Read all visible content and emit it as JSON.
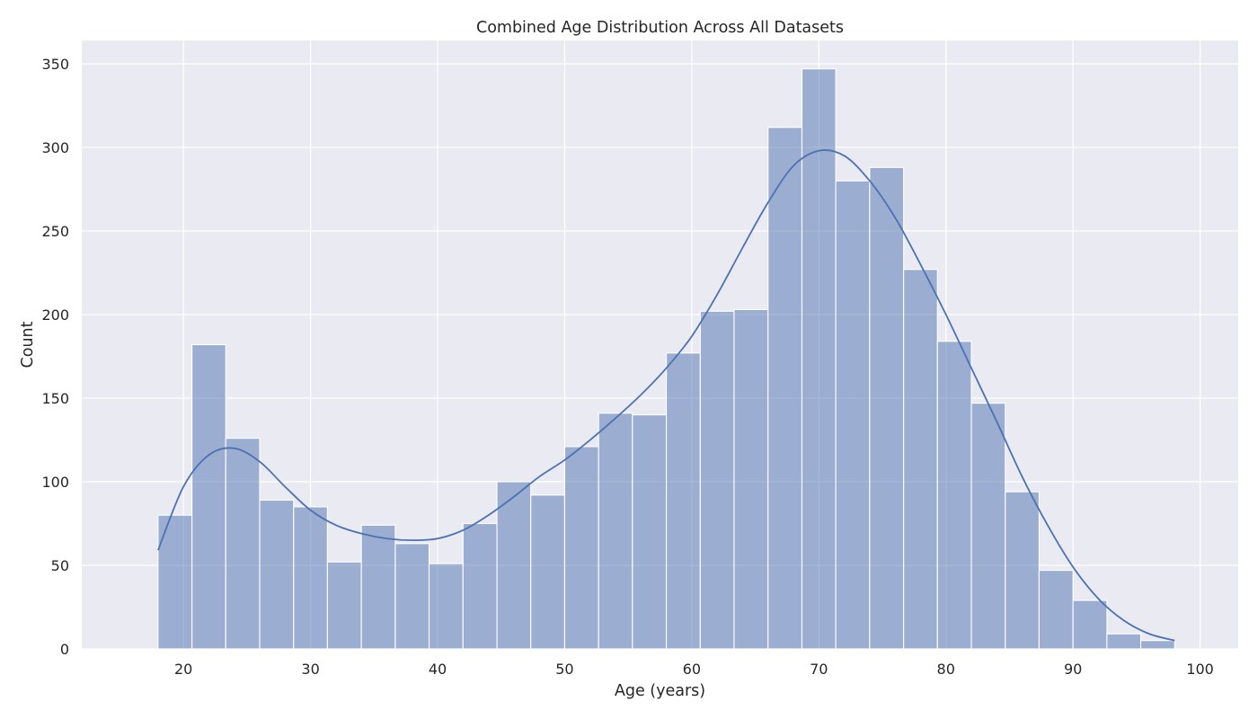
{
  "chart_data": {
    "type": "bar",
    "subtype": "histogram_with_kde",
    "title": "Combined Age Distribution Across All Datasets",
    "xlabel": "Age (years)",
    "ylabel": "Count",
    "xlim": [
      12,
      103
    ],
    "ylim": [
      0,
      364
    ],
    "xticks": [
      20,
      30,
      40,
      50,
      60,
      70,
      80,
      90,
      100
    ],
    "yticks": [
      0,
      50,
      100,
      150,
      200,
      250,
      300,
      350
    ],
    "grid": true,
    "legend": "none",
    "bin_start": 18,
    "bin_width": 2.6667,
    "bins": [
      {
        "x0": 18.0,
        "x1": 20.67,
        "count": 80
      },
      {
        "x0": 20.67,
        "x1": 23.33,
        "count": 182
      },
      {
        "x0": 23.33,
        "x1": 26.0,
        "count": 126
      },
      {
        "x0": 26.0,
        "x1": 28.67,
        "count": 89
      },
      {
        "x0": 28.67,
        "x1": 31.33,
        "count": 85
      },
      {
        "x0": 31.33,
        "x1": 34.0,
        "count": 52
      },
      {
        "x0": 34.0,
        "x1": 36.67,
        "count": 74
      },
      {
        "x0": 36.67,
        "x1": 39.33,
        "count": 63
      },
      {
        "x0": 39.33,
        "x1": 42.0,
        "count": 51
      },
      {
        "x0": 42.0,
        "x1": 44.67,
        "count": 75
      },
      {
        "x0": 44.67,
        "x1": 47.33,
        "count": 100
      },
      {
        "x0": 47.33,
        "x1": 50.0,
        "count": 92
      },
      {
        "x0": 50.0,
        "x1": 52.67,
        "count": 121
      },
      {
        "x0": 52.67,
        "x1": 55.33,
        "count": 141
      },
      {
        "x0": 55.33,
        "x1": 58.0,
        "count": 140
      },
      {
        "x0": 58.0,
        "x1": 60.67,
        "count": 177
      },
      {
        "x0": 60.67,
        "x1": 63.33,
        "count": 202
      },
      {
        "x0": 63.33,
        "x1": 66.0,
        "count": 203
      },
      {
        "x0": 66.0,
        "x1": 68.67,
        "count": 312
      },
      {
        "x0": 68.67,
        "x1": 71.33,
        "count": 347
      },
      {
        "x0": 71.33,
        "x1": 74.0,
        "count": 280
      },
      {
        "x0": 74.0,
        "x1": 76.67,
        "count": 288
      },
      {
        "x0": 76.67,
        "x1": 79.33,
        "count": 227
      },
      {
        "x0": 79.33,
        "x1": 82.0,
        "count": 184
      },
      {
        "x0": 82.0,
        "x1": 84.67,
        "count": 147
      },
      {
        "x0": 84.67,
        "x1": 87.33,
        "count": 94
      },
      {
        "x0": 87.33,
        "x1": 90.0,
        "count": 47
      },
      {
        "x0": 90.0,
        "x1": 92.67,
        "count": 29
      },
      {
        "x0": 92.67,
        "x1": 95.33,
        "count": 9
      },
      {
        "x0": 95.33,
        "x1": 98.0,
        "count": 5
      }
    ],
    "kde": {
      "x": [
        18,
        20,
        22,
        24,
        26,
        28,
        30,
        32,
        34,
        36,
        38,
        40,
        42,
        44,
        46,
        48,
        50,
        52,
        54,
        56,
        58,
        60,
        62,
        64,
        66,
        68,
        70,
        72,
        74,
        76,
        78,
        80,
        82,
        84,
        86,
        88,
        90,
        92,
        94,
        96,
        98
      ],
      "y": [
        59,
        97,
        116,
        120,
        112,
        97,
        83,
        74,
        69,
        66,
        65,
        66,
        71,
        80,
        91,
        103,
        113,
        125,
        138,
        152,
        168,
        187,
        212,
        240,
        267,
        289,
        298,
        295,
        280,
        258,
        230,
        200,
        168,
        136,
        103,
        74,
        49,
        30,
        17,
        9,
        5
      ]
    },
    "colors": {
      "background": "#eaeaf2",
      "grid": "#ffffff",
      "bar_fill": "#4c72b0",
      "bar_fill_opacity": 0.5,
      "bar_edge": "#ffffff",
      "kde_line": "#4c72b0",
      "text": "#262626"
    }
  }
}
